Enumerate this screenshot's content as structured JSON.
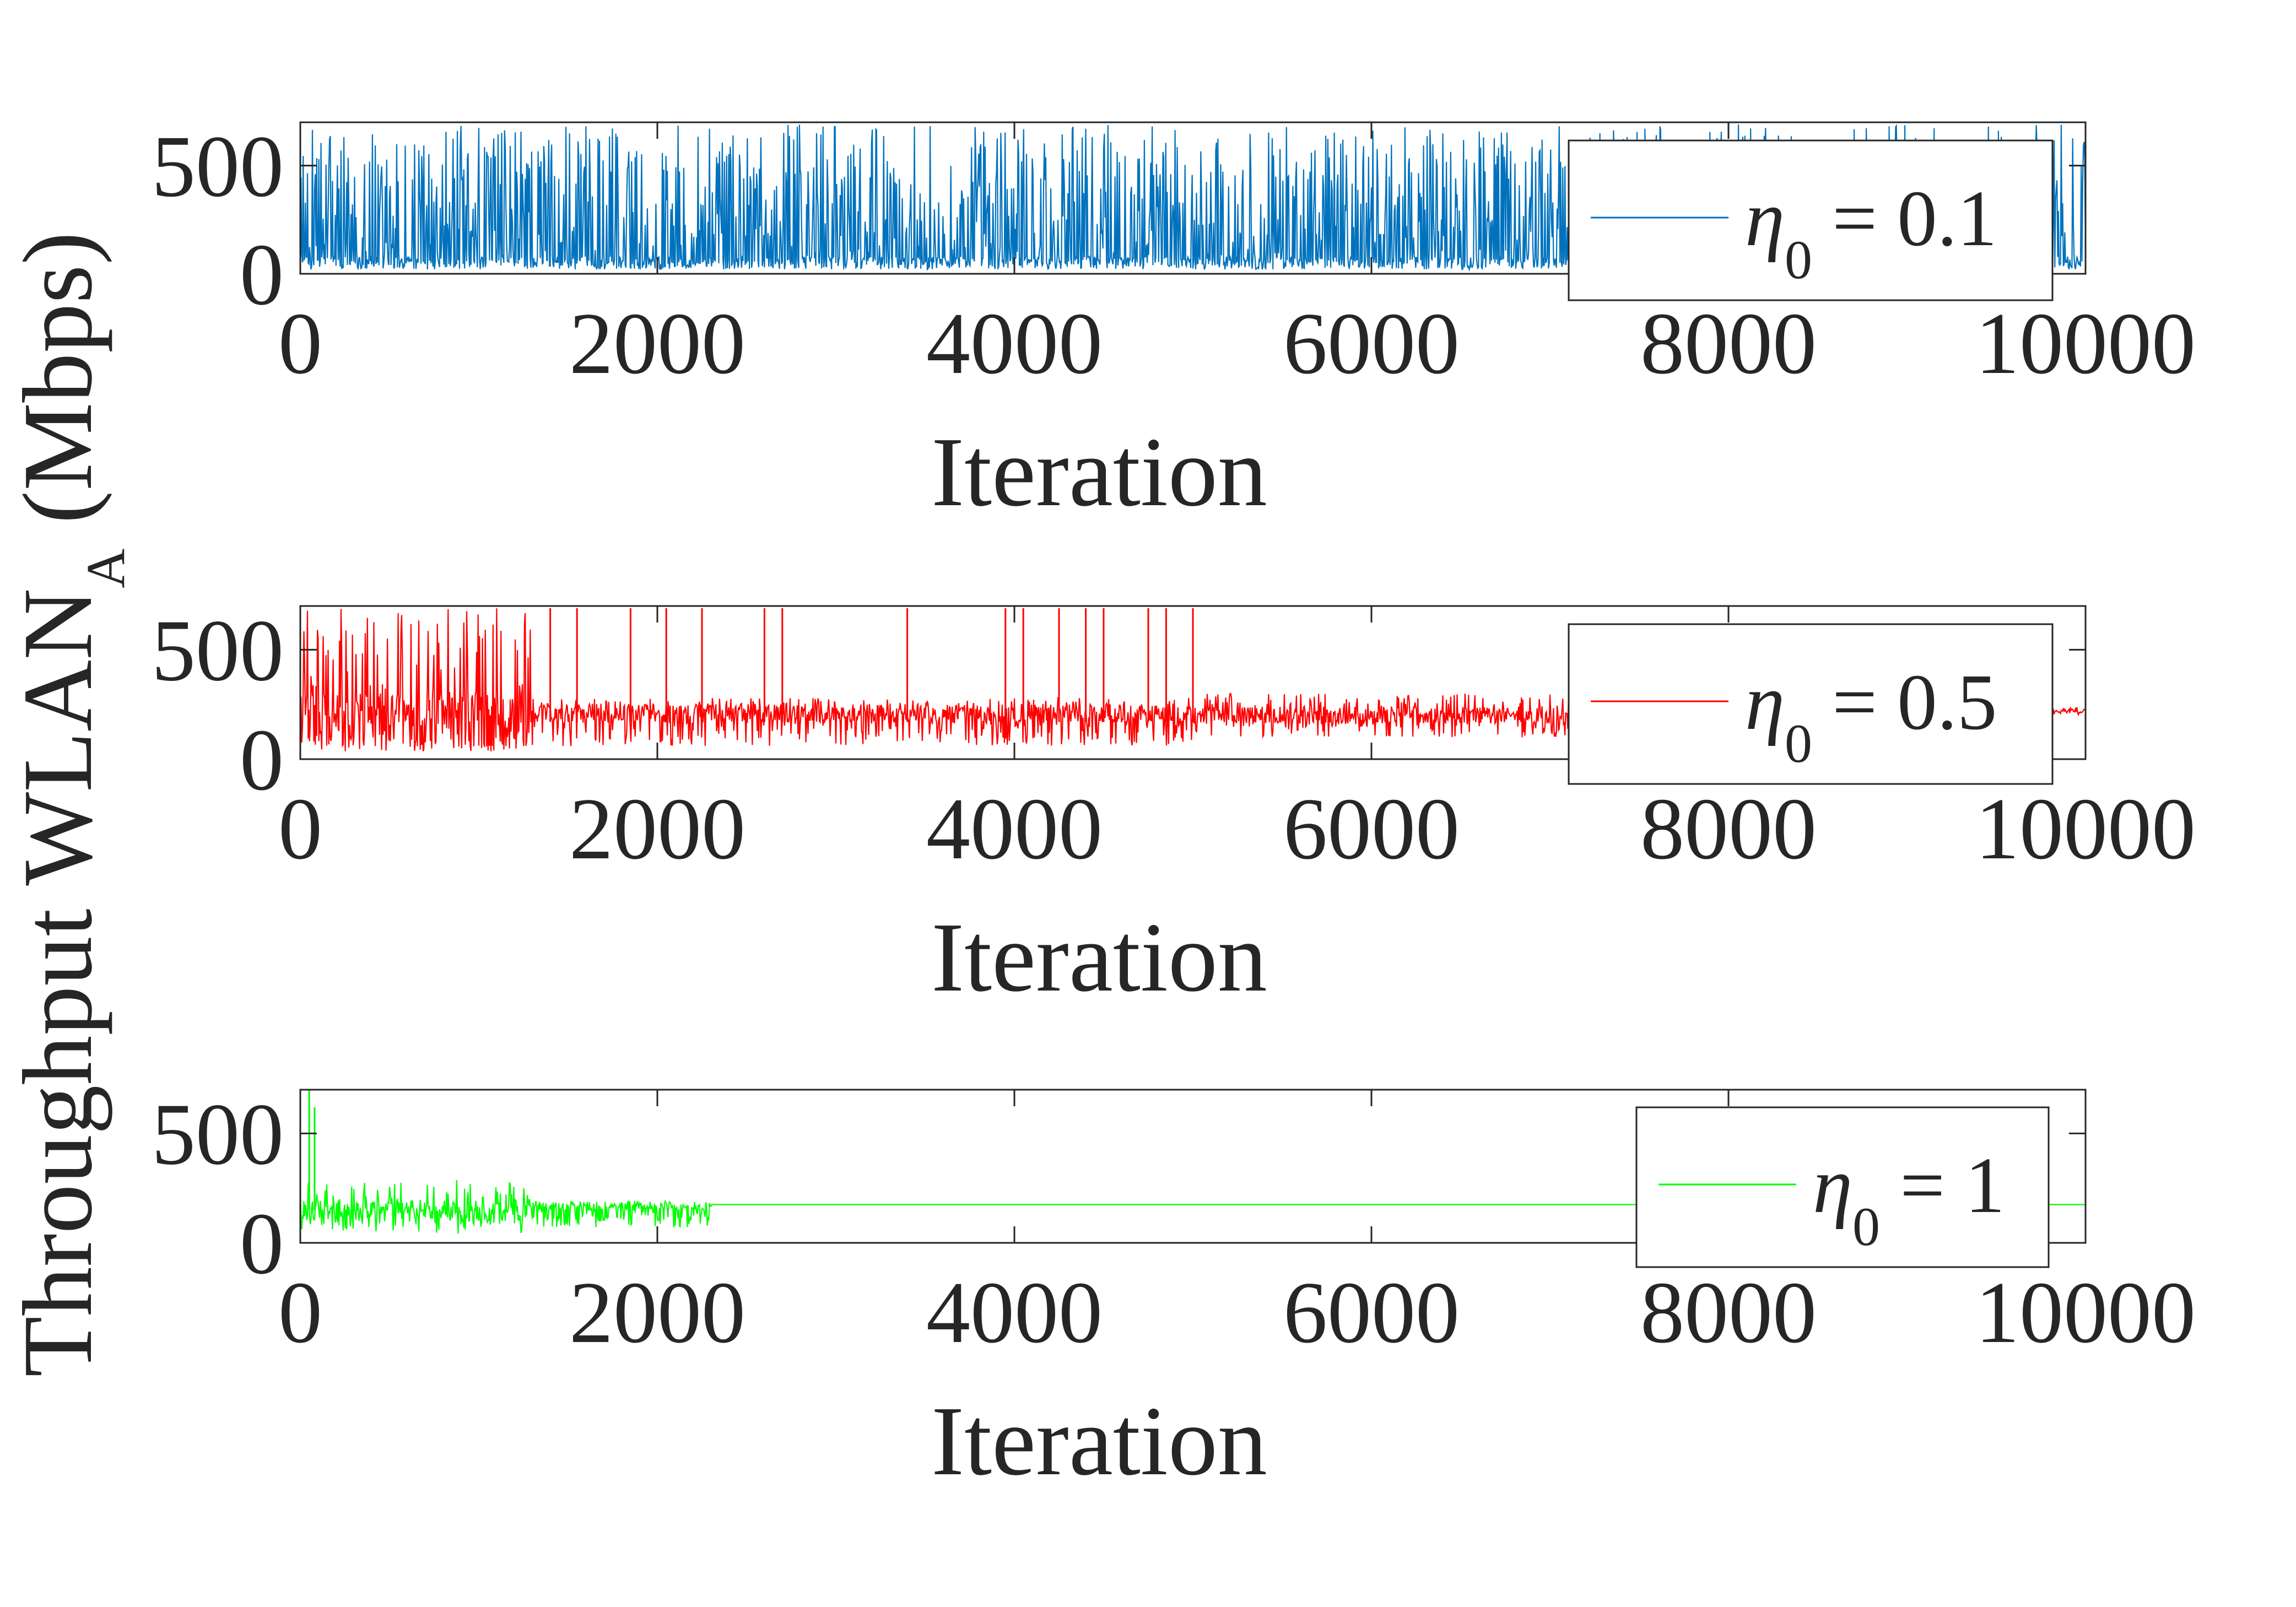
{
  "figure": {
    "ylabel_main": "Throughput WLAN",
    "ylabel_sub": "A",
    "ylabel_unit": " (Mbps)"
  },
  "chart_data": [
    {
      "type": "line",
      "xlabel": "Iteration",
      "xlim": [
        0,
        10000
      ],
      "ylim": [
        0,
        700
      ],
      "xticks": [
        0,
        2000,
        4000,
        6000,
        8000,
        10000
      ],
      "xtick_labels": [
        "0",
        "2000",
        "4000",
        "6000",
        "8000",
        "10000"
      ],
      "yticks": [
        0,
        500
      ],
      "ytick_labels": [
        "0",
        "500"
      ],
      "series": [
        {
          "legend_symbol": "η",
          "legend_sub": "0",
          "legend_value": " = 0.1",
          "color": "#0072BD",
          "pattern": "random-oscillation",
          "range": [
            20,
            690
          ],
          "segments": [
            {
              "from": 0,
              "to": 10000,
              "base": 20,
              "max": 690
            }
          ]
        }
      ],
      "legend_position": "right"
    },
    {
      "type": "line",
      "xlabel": "Iteration",
      "xlim": [
        0,
        10000
      ],
      "ylim": [
        0,
        700
      ],
      "xticks": [
        0,
        2000,
        4000,
        6000,
        8000,
        10000
      ],
      "xtick_labels": [
        "0",
        "2000",
        "4000",
        "6000",
        "8000",
        "10000"
      ],
      "yticks": [
        0,
        500
      ],
      "ytick_labels": [
        "0",
        "500"
      ],
      "series": [
        {
          "legend_symbol": "η",
          "legend_sub": "0",
          "legend_value": " = 0.5",
          "color": "#FF0000",
          "pattern": "converging-oscillation",
          "segments": [
            {
              "from": 0,
              "to": 1300,
              "low": 20,
              "high": 690,
              "center": 170
            },
            {
              "from": 1300,
              "to": 5000,
              "low": 60,
              "high": 280,
              "center": 210
            },
            {
              "from": 5000,
              "to": 7300,
              "low": 100,
              "high": 300,
              "center": 200
            },
            {
              "from": 7300,
              "to": 10000,
              "low": 200,
              "high": 240,
              "center": 220
            }
          ],
          "spikes": [
            {
              "x": 1400,
              "y": 690
            },
            {
              "x": 1550,
              "y": 690
            },
            {
              "x": 1850,
              "y": 690
            },
            {
              "x": 2050,
              "y": 690
            },
            {
              "x": 2250,
              "y": 690
            },
            {
              "x": 2600,
              "y": 690
            },
            {
              "x": 2700,
              "y": 690
            },
            {
              "x": 3400,
              "y": 690
            },
            {
              "x": 3950,
              "y": 690
            },
            {
              "x": 4050,
              "y": 690
            },
            {
              "x": 4250,
              "y": 690
            },
            {
              "x": 4400,
              "y": 690
            },
            {
              "x": 4500,
              "y": 690
            },
            {
              "x": 4750,
              "y": 690
            },
            {
              "x": 4850,
              "y": 690
            },
            {
              "x": 5000,
              "y": 690
            }
          ]
        }
      ],
      "legend_position": "right"
    },
    {
      "type": "line",
      "xlabel": "Iteration",
      "xlim": [
        0,
        10000
      ],
      "ylim": [
        0,
        700
      ],
      "xticks": [
        0,
        2000,
        4000,
        6000,
        8000,
        10000
      ],
      "xtick_labels": [
        "0",
        "2000",
        "4000",
        "6000",
        "8000",
        "10000"
      ],
      "yticks": [
        0,
        500
      ],
      "ytick_labels": [
        "0",
        "500"
      ],
      "series": [
        {
          "legend_symbol": "η",
          "legend_sub": "0",
          "legend_value": " = 1",
          "color": "#00FF00",
          "pattern": "converging-oscillation",
          "segments": [
            {
              "from": 0,
              "to": 750,
              "low": 50,
              "high": 280,
              "center": 150
            },
            {
              "from": 750,
              "to": 1300,
              "low": 40,
              "high": 290,
              "center": 130
            },
            {
              "from": 1300,
              "to": 2300,
              "low": 70,
              "high": 180,
              "center": 170
            },
            {
              "from": 2300,
              "to": 10000,
              "low": 175,
              "high": 175,
              "center": 175
            }
          ],
          "spikes": [
            {
              "x": 50,
              "y": 700
            },
            {
              "x": 80,
              "y": 620
            }
          ]
        }
      ],
      "legend_position": "right"
    }
  ]
}
